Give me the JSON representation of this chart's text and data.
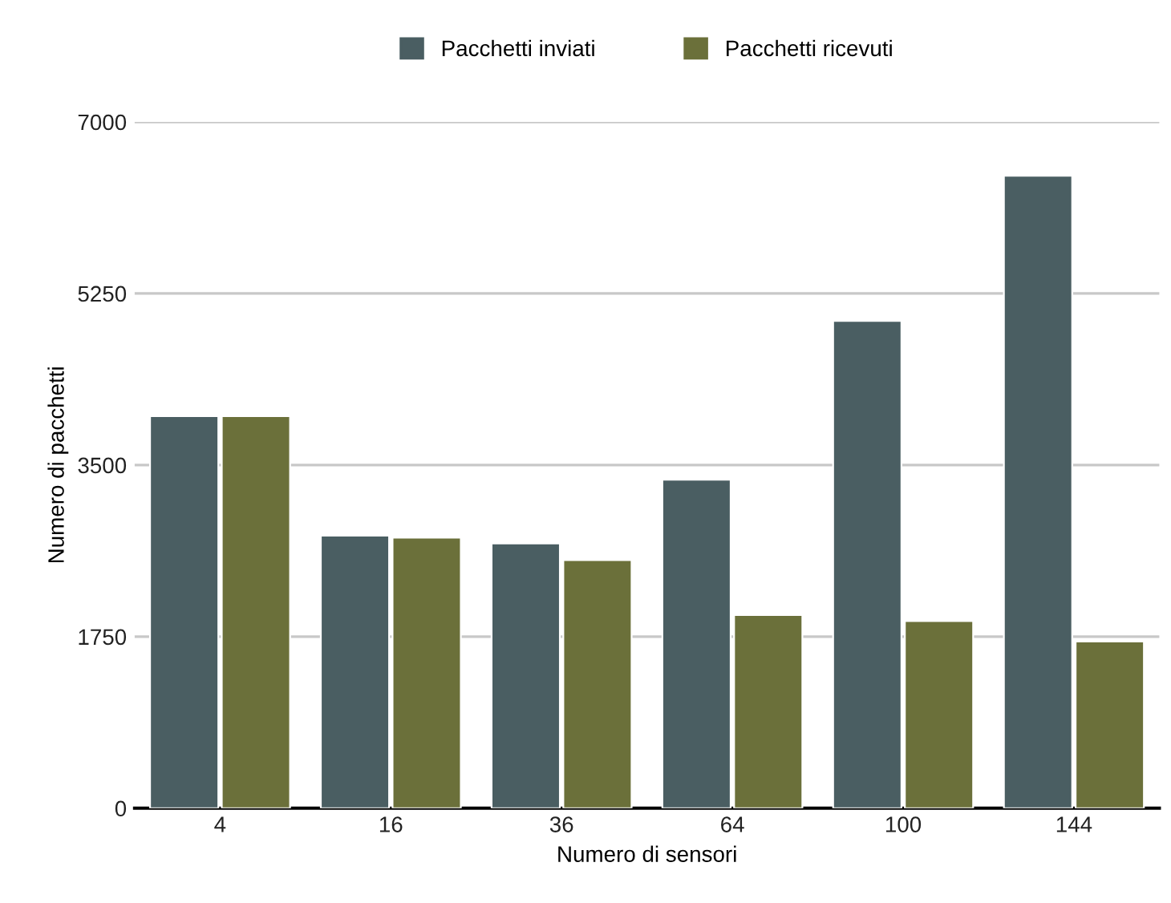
{
  "chart_data": {
    "type": "bar",
    "xlabel": "Numero di sensori",
    "ylabel": "Numero di pacchetti",
    "categories": [
      "4",
      "16",
      "36",
      "64",
      "100",
      "144"
    ],
    "series": [
      {
        "name": "Pacchetti inviati",
        "color": "#4a5e62",
        "values": [
          4000,
          2780,
          2700,
          3350,
          4970,
          6450
        ]
      },
      {
        "name": "Pacchetti ricevuti",
        "color": "#6b703a",
        "values": [
          4000,
          2760,
          2530,
          1970,
          1910,
          1700
        ]
      }
    ],
    "ylim": [
      0,
      7000
    ],
    "yticks": [
      0,
      1750,
      3500,
      5250,
      7000
    ],
    "grid": "y",
    "legend": "top"
  }
}
